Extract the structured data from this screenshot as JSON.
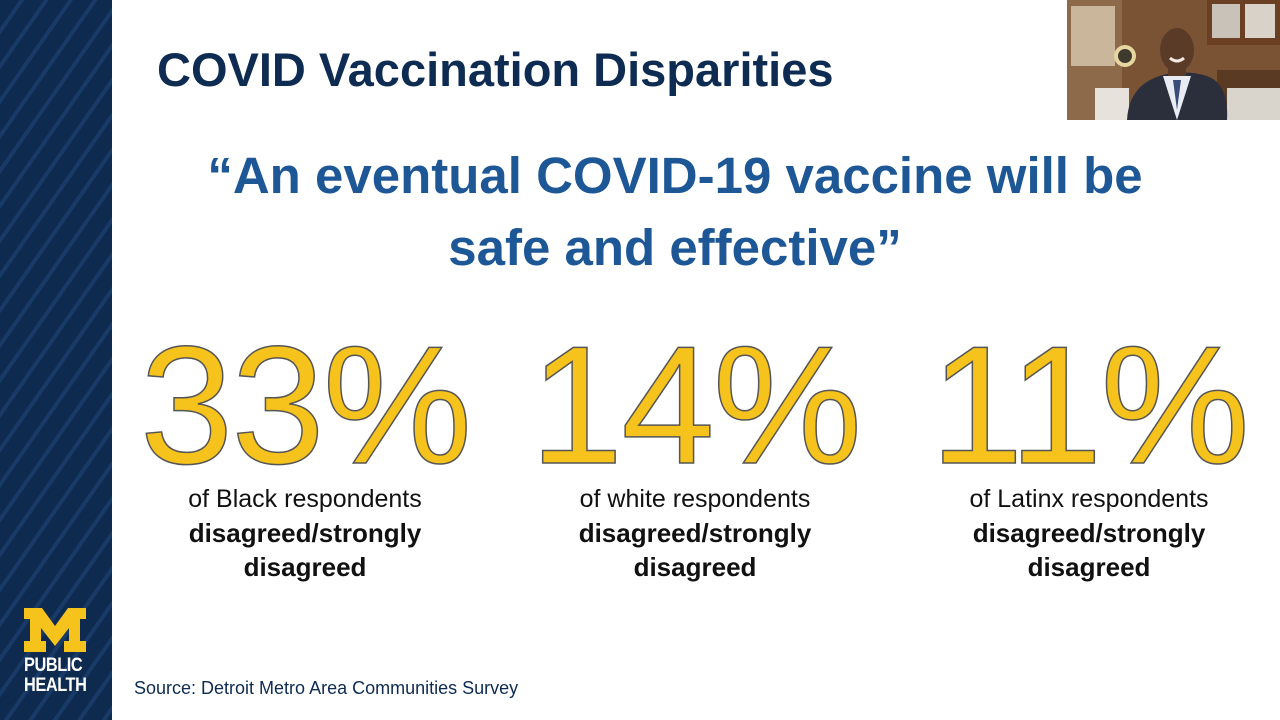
{
  "slide": {
    "title": "COVID Vaccination Disparities",
    "quote_line1": "“An eventual COVID-19 vaccine will be",
    "quote_line2": "safe and effective”",
    "stats": [
      {
        "value": "33%",
        "group": "of Black respondents",
        "line1": "disagreed/strongly",
        "line2": "disagreed"
      },
      {
        "value": "14%",
        "group": "of white respondents",
        "line1": "disagreed/strongly",
        "line2": "disagreed"
      },
      {
        "value": "11%",
        "group": "of Latinx respondents",
        "line1": "disagreed/strongly",
        "line2": "disagreed"
      }
    ],
    "source": "Source: Detroit Metro Area Communities Survey"
  },
  "branding": {
    "logo_line1": "PUBLIC",
    "logo_line2": "HEALTH",
    "colors": {
      "navy": "#0e2b52",
      "maize": "#f6c21c",
      "quote_blue": "#1e5796"
    }
  },
  "video_tile": {
    "icon": "presenter-video-thumbnail"
  }
}
